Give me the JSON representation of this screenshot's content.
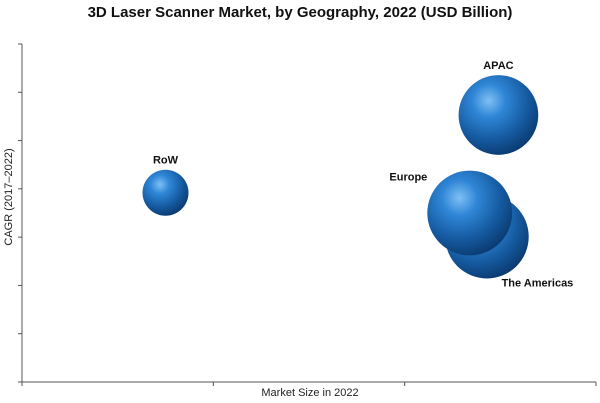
{
  "chart_data": {
    "type": "scatter",
    "title": "3D Laser Scanner Market, by Geography, 2022 (USD Billion)",
    "xlabel": "Market Size in 2022",
    "ylabel": "CAGR (2017–2022)",
    "grid": false,
    "legend": "none",
    "xlim": [
      0,
      100
    ],
    "ylim": [
      0,
      100
    ],
    "bubble_color": "#1f6fb5",
    "series": [
      {
        "points": [
          {
            "label": "RoW",
            "x": 25,
            "y": 56,
            "size": 1.0
          },
          {
            "label": "Europe",
            "x": 78,
            "y": 50,
            "size": 3.4
          },
          {
            "label": "The Americas",
            "x": 81,
            "y": 43,
            "size": 3.3
          },
          {
            "label": "APAC",
            "x": 83,
            "y": 79,
            "size": 3.0
          }
        ]
      }
    ]
  }
}
